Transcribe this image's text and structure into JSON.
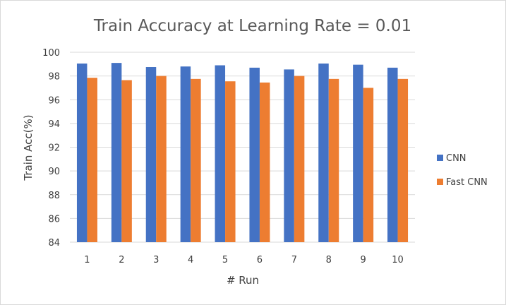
{
  "chart_data": {
    "type": "bar",
    "title": "Train Accuracy at Learning Rate = 0.01",
    "xlabel": "# Run",
    "ylabel": "Train Acc(%)",
    "ylim": [
      84,
      100
    ],
    "y_ticks": [
      84,
      86,
      88,
      90,
      92,
      94,
      96,
      98,
      100
    ],
    "categories": [
      "1",
      "2",
      "3",
      "4",
      "5",
      "6",
      "7",
      "8",
      "9",
      "10"
    ],
    "series": [
      {
        "name": "CNN",
        "color": "#4472c4",
        "values": [
          99.05,
          99.1,
          98.75,
          98.8,
          98.9,
          98.7,
          98.55,
          99.05,
          98.95,
          98.7
        ]
      },
      {
        "name": "Fast CNN",
        "color": "#ed7d31",
        "values": [
          97.85,
          97.65,
          98.0,
          97.75,
          97.55,
          97.45,
          98.0,
          97.75,
          97.0,
          97.75
        ]
      }
    ],
    "grid": true,
    "legend_position": "right"
  }
}
